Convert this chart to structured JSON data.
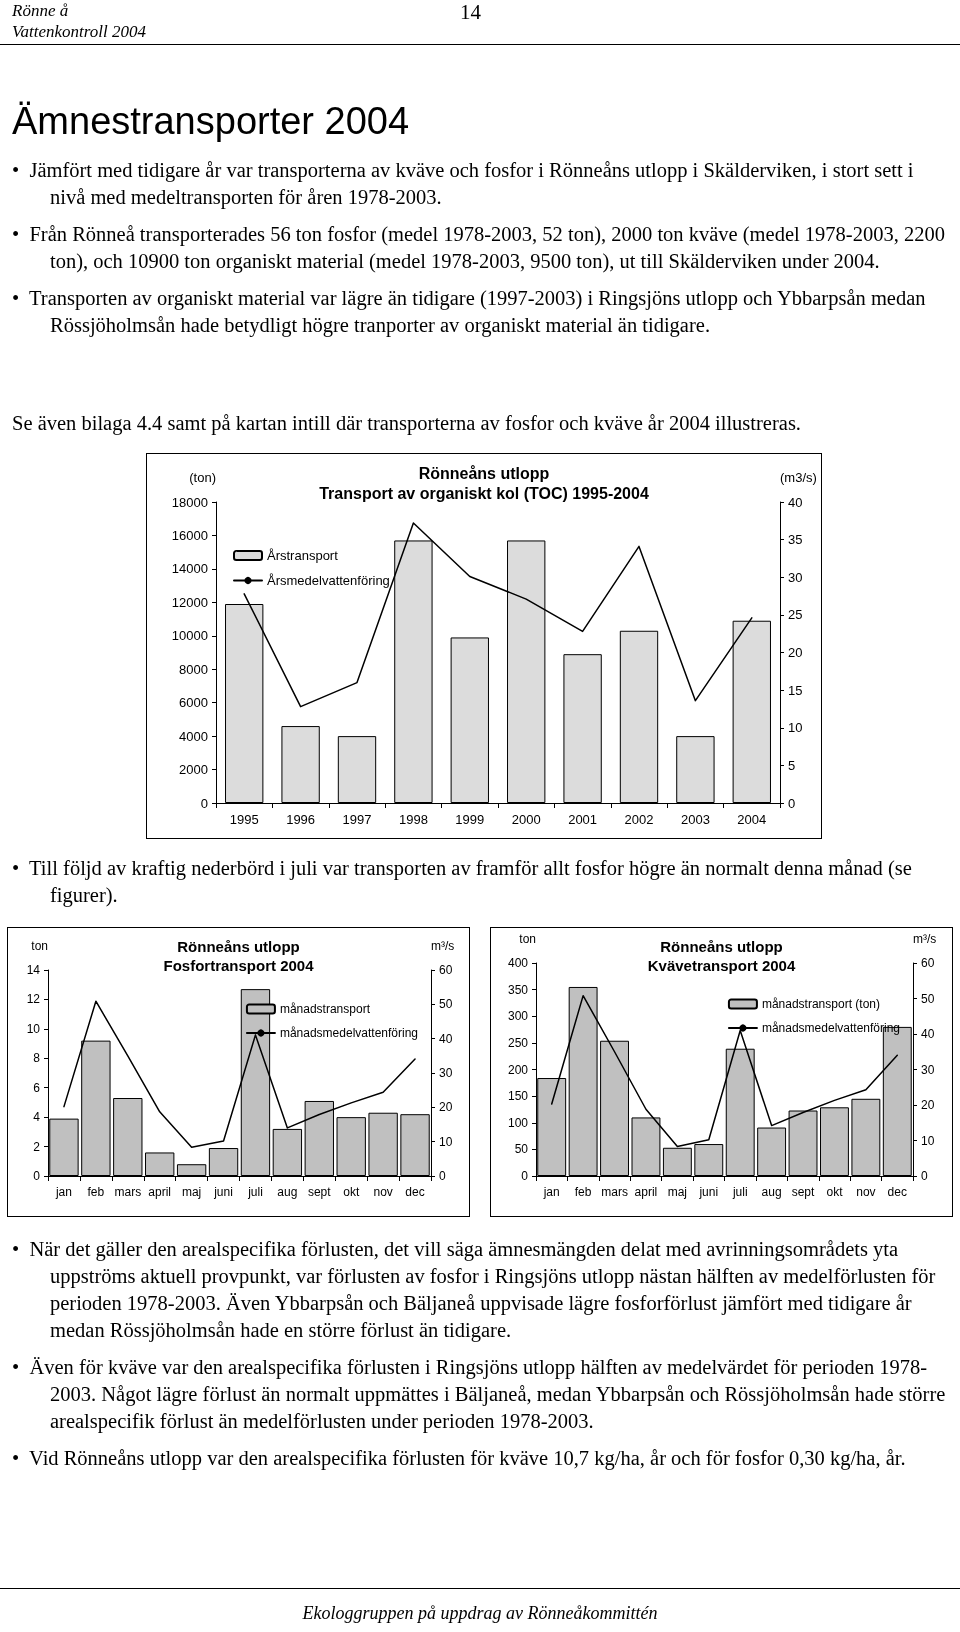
{
  "chart_data": [
    {
      "type": "other",
      "annotations": [
        "Rönne å",
        "Vattenkontroll 2004",
        "14"
      ]
    },
    {
      "type": "other",
      "title": "Ämnestransporter 2004",
      "annotations": [
        "•  Jämfört med tidigare år var transporterna av kväve och fosfor i Rönneåns utlopp i Skälderviken, i stort sett i nivå med medeltransporten för åren 1978-2003.",
        "•  Från Rönneå transporterades 56 ton fosfor (medel 1978-2003, 52 ton), 2000 ton kväve (medel 1978-2003, 2200 ton), och 10900 ton organiskt material (medel 1978-2003, 9500 ton), ut till Skälderviken under 2004.",
        "•  Transporten av organiskt material var lägre än tidigare (1997-2003) i Ringsjöns utlopp och Ybbarpsån medan Rössjöholmsån hade betydligt högre tranporter av organiskt material än tidigare."
      ]
    },
    {
      "type": "other",
      "annotations": [
        "Se även bilaga 4.4 samt på kartan intill där transporterna av fosfor och kväve år 2004 illustreras."
      ]
    },
    {
      "type": "bar",
      "title": "Rönneåns utlopp",
      "subtitle": "Transport av organiskt kol (TOC) 1995-2004",
      "ylabel": "(ton)",
      "y2label": "(m3/s)",
      "categories": [
        "1995",
        "1996",
        "1997",
        "1998",
        "1999",
        "2000",
        "2001",
        "2002",
        "2003",
        "2004"
      ],
      "series": [
        {
          "name": "Årstransport",
          "type": "bar",
          "color": "#dcdcdc",
          "values": [
            11900,
            4600,
            4000,
            15700,
            9900,
            15700,
            8900,
            10300,
            4000,
            10900
          ]
        },
        {
          "name": "Årsmedelvattenföring",
          "type": "line",
          "axis": "y2",
          "color": "#000000",
          "values": [
            27.8,
            12.8,
            16.0,
            37.2,
            30.1,
            27.1,
            22.8,
            34.1,
            13.6,
            24.6
          ]
        }
      ],
      "ylim": [
        0,
        18000
      ],
      "yticks": [
        0,
        2000,
        4000,
        6000,
        8000,
        10000,
        12000,
        14000,
        16000,
        18000
      ],
      "y2lim": [
        0,
        40
      ],
      "y2ticks": [
        0,
        5,
        10,
        15,
        20,
        25,
        30,
        35,
        40
      ],
      "legend": "top left",
      "marker": "none",
      "line_style": "solid",
      "grid": false
    },
    {
      "type": "other",
      "annotations": [
        "•  Till följd av kraftig nederbörd i juli var transporten av framför allt fosfor högre än normalt denna månad (se figurer)."
      ]
    },
    {
      "type": "bar",
      "title": "Rönneåns utlopp",
      "subtitle": "Fosfortransport 2004",
      "ylabel": "ton",
      "y2label": "m³/s",
      "categories": [
        "jan",
        "feb",
        "mars",
        "april",
        "maj",
        "juni",
        "juli",
        "aug",
        "sept",
        "okt",
        "nov",
        "dec"
      ],
      "series": [
        {
          "name": "månadstransport",
          "type": "bar",
          "color": "#c0c0c0",
          "values": [
            3.9,
            9.2,
            5.3,
            1.6,
            0.8,
            1.9,
            12.7,
            3.2,
            5.1,
            4.0,
            4.3,
            4.2
          ]
        },
        {
          "name": "månadsmedelvattenföring",
          "type": "line",
          "axis": "y2",
          "color": "#000000",
          "values": [
            20.2,
            50.9,
            35,
            18.7,
            8.4,
            10.2,
            41.1,
            14.0,
            17.9,
            21.3,
            24.4,
            34.1
          ]
        }
      ],
      "ylim": [
        0,
        14
      ],
      "yticks": [
        0,
        2,
        4,
        6,
        8,
        10,
        12,
        14
      ],
      "y2lim": [
        0,
        60
      ],
      "y2ticks": [
        0,
        10,
        20,
        30,
        40,
        50,
        60
      ],
      "legend": "top right",
      "marker": "none",
      "line_style": "solid",
      "grid": false
    },
    {
      "type": "bar",
      "title": "Rönneåns utlopp",
      "subtitle": "Kvävetransport 2004",
      "ylabel": "ton",
      "y2label": "m³/s",
      "categories": [
        "jan",
        "feb",
        "mars",
        "april",
        "maj",
        "juni",
        "juli",
        "aug",
        "sept",
        "okt",
        "nov",
        "dec"
      ],
      "series": [
        {
          "name": "månadstransport (ton)",
          "type": "bar",
          "color": "#c0c0c0",
          "values": [
            184,
            355,
            254,
            110,
            53,
            60,
            239,
            91,
            123,
            129,
            145,
            280
          ]
        },
        {
          "name": "månadsmedelvattenföring",
          "type": "line",
          "axis": "y2",
          "color": "#000000",
          "values": [
            20.3,
            50.8,
            35,
            18.8,
            8.3,
            10.2,
            41.0,
            14.2,
            17.9,
            21.3,
            24.3,
            34.0
          ]
        }
      ],
      "ylim": [
        0,
        400
      ],
      "yticks": [
        0,
        50,
        100,
        150,
        200,
        250,
        300,
        350,
        400
      ],
      "y2lim": [
        0,
        60
      ],
      "y2ticks": [
        0,
        10,
        20,
        30,
        40,
        50,
        60
      ],
      "legend": "top right",
      "marker": "none",
      "line_style": "solid",
      "grid": false
    },
    {
      "type": "other",
      "annotations": [
        "•  När det gäller den arealspecifika förlusten, det vill säga ämnesmängden delat med avrinningsområdets yta uppströms aktuell provpunkt, var förlusten av fosfor i Ringsjöns utlopp nästan hälften av medelförlusten för perioden 1978-2003. Även Ybbarpsån och Bäljaneå uppvisade lägre fosforförlust jämfört med tidigare år medan Rössjöholmsån hade en större förlust än tidigare.",
        "•  Även för kväve var den arealspecifika förlusten i Ringsjöns utlopp hälften av medelvärdet för perioden 1978-2003. Något lägre förlust än normalt uppmättes i Bäljaneå, medan Ybbarpsån och Rössjöholmsån hade större arealspecifik förlust än medelförlusten under perioden 1978-2003.",
        "•  Vid Rönneåns utlopp var den arealspecifika förlusten för kväve 10,7 kg/ha, år och för fosfor 0,30 kg/ha, år."
      ]
    },
    {
      "type": "other",
      "annotations": [
        "Ekologgruppen på uppdrag av Rönneåkommittén"
      ]
    }
  ]
}
